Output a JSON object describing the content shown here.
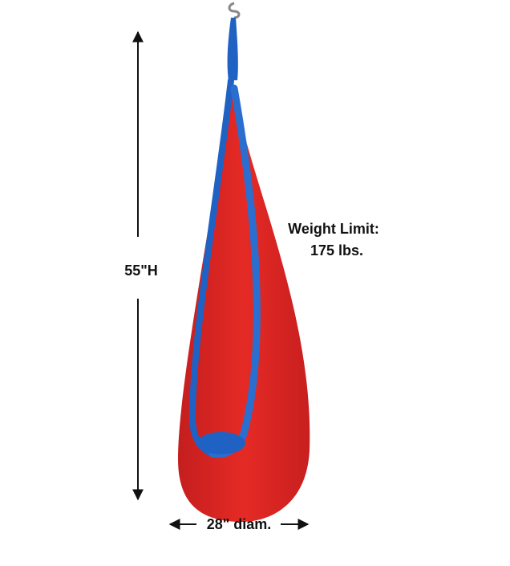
{
  "height_label": "55\"H",
  "weight_limit": {
    "line1": "Weight Limit:",
    "line2": "175 lbs."
  },
  "diameter_label": "28\" diam."
}
